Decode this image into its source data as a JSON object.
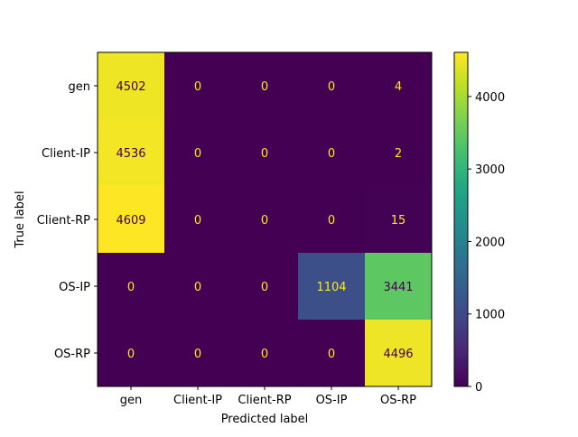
{
  "chart_data": {
    "type": "heatmap",
    "title": "",
    "xlabel": "Predicted label",
    "ylabel": "True label",
    "x_categories": [
      "gen",
      "Client-IP",
      "Client-RP",
      "OS-IP",
      "OS-RP"
    ],
    "y_categories": [
      "gen",
      "Client-IP",
      "Client-RP",
      "OS-IP",
      "OS-RP"
    ],
    "values": [
      [
        4502,
        0,
        0,
        0,
        4
      ],
      [
        4536,
        0,
        0,
        0,
        2
      ],
      [
        4609,
        0,
        0,
        0,
        15
      ],
      [
        0,
        0,
        0,
        1104,
        3441
      ],
      [
        0,
        0,
        0,
        0,
        4496
      ]
    ],
    "colormap": "viridis",
    "color_range": [
      0,
      4609
    ],
    "colorbar_ticks": [
      0,
      1000,
      2000,
      3000,
      4000
    ],
    "grid": false
  }
}
